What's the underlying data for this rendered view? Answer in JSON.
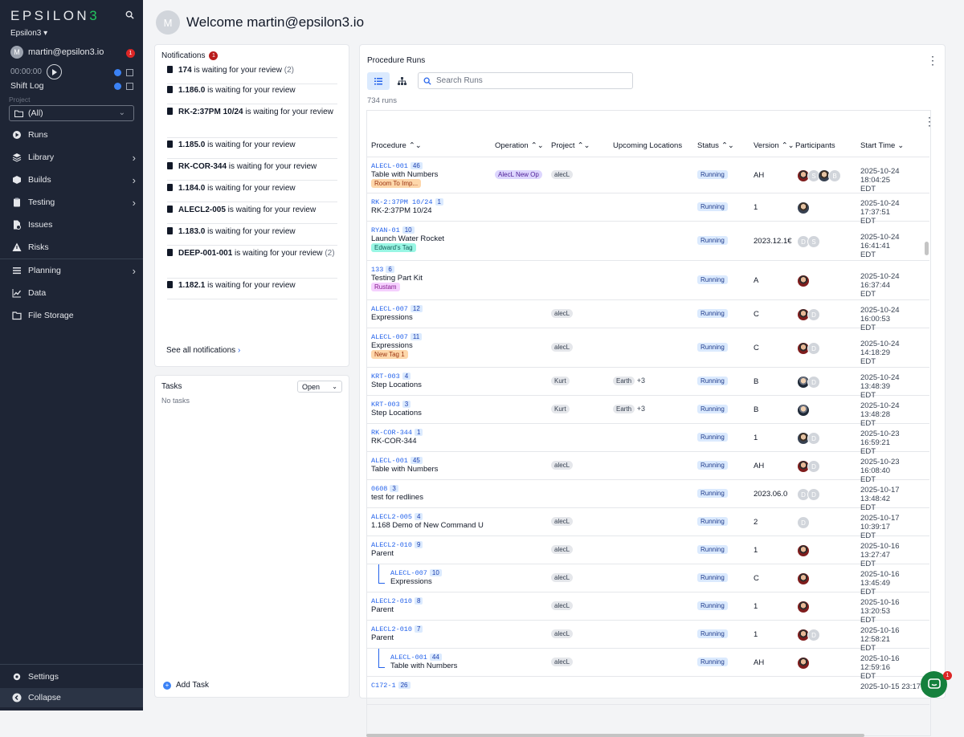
{
  "sidebar": {
    "logo": "EPSILON3",
    "org": "Epsilon3 ▾",
    "user": "martin@epsilon3.io",
    "user_initial": "M",
    "badge": "1",
    "timer": "00:00:00",
    "shift_log": "Shift Log",
    "project_label": "Project",
    "project_value": "(All)",
    "nav": [
      {
        "label": "Runs",
        "icon": "play-circle-icon"
      },
      {
        "label": "Library",
        "icon": "layers-icon"
      },
      {
        "label": "Builds",
        "icon": "box-icon"
      },
      {
        "label": "Testing",
        "icon": "clipboard-icon"
      },
      {
        "label": "Issues",
        "icon": "issue-icon"
      },
      {
        "label": "Risks",
        "icon": "warning-icon"
      },
      {
        "label": "Planning",
        "icon": "list-icon"
      },
      {
        "label": "Data",
        "icon": "chart-icon"
      },
      {
        "label": "File Storage",
        "icon": "folder-icon"
      }
    ],
    "settings": "Settings",
    "collapse": "Collapse"
  },
  "header": {
    "initial": "M",
    "welcome": "Welcome martin@epsilon3.io"
  },
  "notifications": {
    "title": "Notifications",
    "badge": "1",
    "items": [
      {
        "bold": "174",
        "text": " is waiting for your review",
        "count": "(2)"
      },
      {
        "bold": "1.186.0",
        "text": " is waiting for your review",
        "count": ""
      },
      {
        "bold": "RK-2:37PM 10/24",
        "text": " is waiting for your review",
        "count": ""
      },
      {
        "bold": "1.185.0",
        "text": " is waiting for your review",
        "count": ""
      },
      {
        "bold": "RK-COR-344",
        "text": " is waiting for your review",
        "count": ""
      },
      {
        "bold": "1.184.0",
        "text": " is waiting for your review",
        "count": ""
      },
      {
        "bold": "ALECL2-005",
        "text": " is waiting for your review",
        "count": ""
      },
      {
        "bold": "1.183.0",
        "text": " is waiting for your review",
        "count": ""
      },
      {
        "bold": "DEEP-001-001",
        "text": " is waiting for your review",
        "count": "(2)"
      },
      {
        "bold": "1.182.1",
        "text": " is waiting for your review",
        "count": ""
      }
    ],
    "see_all": "See all notifications"
  },
  "tasks": {
    "title": "Tasks",
    "filter": "Open",
    "empty": "No tasks",
    "add": "Add Task"
  },
  "runs": {
    "title": "Procedure Runs",
    "search_placeholder": "Search Runs",
    "count": "734 runs",
    "columns": [
      "Procedure",
      "Operation",
      "Project",
      "Upcoming Locations",
      "Status",
      "Version",
      "Participants",
      "Start Time"
    ],
    "rows": [
      {
        "id": "ALECL-001",
        "ver": "46",
        "name": "Table with Numbers",
        "tag": "Room To Imp...",
        "tag_color": "#fed7aa",
        "tag_text": "#9a3412",
        "operation": "AlecL New Op",
        "project": "alecL",
        "location": "",
        "loc_extra": "",
        "status": "Running",
        "version": "AH",
        "participants": [
          "photo",
          "S",
          "photo2",
          "B"
        ],
        "date": "2025-10-24 18:04:25",
        "tz": "EDT",
        "indent": false
      },
      {
        "id": "RK-2:37PM 10/24",
        "ver": "1",
        "name": "RK-2:37PM 10/24",
        "tag": "",
        "operation": "",
        "project": "",
        "location": "",
        "loc_extra": "",
        "status": "Running",
        "version": "1",
        "participants": [
          "photo2"
        ],
        "date": "2025-10-24 17:37:51",
        "tz": "EDT",
        "indent": false
      },
      {
        "id": "RYAN-01",
        "ver": "10",
        "name": "Launch Water Rocket",
        "tag": "Edward's Tag",
        "tag_color": "#99f6e4",
        "tag_text": "#115e59",
        "operation": "",
        "project": "",
        "location": "",
        "loc_extra": "",
        "status": "Running",
        "version": "2023.12.1€",
        "participants": [
          "D",
          "S"
        ],
        "date": "2025-10-24 16:41:41",
        "tz": "EDT",
        "indent": false
      },
      {
        "id": "133",
        "ver": "6",
        "name": "Testing Part Kit",
        "tag": "Rustam",
        "tag_color": "#f5d0fe",
        "tag_text": "#86198f",
        "operation": "",
        "project": "",
        "location": "",
        "loc_extra": "",
        "status": "Running",
        "version": "A",
        "participants": [
          "photo"
        ],
        "date": "2025-10-24 16:37:44",
        "tz": "EDT",
        "indent": false
      },
      {
        "id": "ALECL-007",
        "ver": "12",
        "name": "Expressions",
        "tag": "",
        "operation": "",
        "project": "alecL",
        "location": "",
        "loc_extra": "",
        "status": "Running",
        "version": "C",
        "participants": [
          "photo",
          "D"
        ],
        "date": "2025-10-24 16:00:53",
        "tz": "EDT",
        "indent": false
      },
      {
        "id": "ALECL-007",
        "ver": "11",
        "name": "Expressions",
        "tag": "New Tag 1",
        "tag_color": "#fed7aa",
        "tag_text": "#9a3412",
        "operation": "",
        "project": "alecL",
        "location": "",
        "loc_extra": "",
        "status": "Running",
        "version": "C",
        "participants": [
          "photo",
          "D"
        ],
        "date": "2025-10-24 14:18:29",
        "tz": "EDT",
        "indent": false
      },
      {
        "id": "KRT-003",
        "ver": "4",
        "name": "Step Locations",
        "tag": "",
        "operation": "",
        "project": "Kurt",
        "location": "Earth",
        "loc_extra": "+3",
        "status": "Running",
        "version": "B",
        "participants": [
          "photo3",
          "D"
        ],
        "date": "2025-10-24 13:48:39",
        "tz": "EDT",
        "indent": false
      },
      {
        "id": "KRT-003",
        "ver": "3",
        "name": "Step Locations",
        "tag": "",
        "operation": "",
        "project": "Kurt",
        "location": "Earth",
        "loc_extra": "+3",
        "status": "Running",
        "version": "B",
        "participants": [
          "photo3"
        ],
        "date": "2025-10-24 13:48:28",
        "tz": "EDT",
        "indent": false
      },
      {
        "id": "RK-COR-344",
        "ver": "1",
        "name": "RK-COR-344",
        "tag": "",
        "operation": "",
        "project": "",
        "location": "",
        "loc_extra": "",
        "status": "Running",
        "version": "1",
        "participants": [
          "photo2",
          "D"
        ],
        "date": "2025-10-23 16:59:21",
        "tz": "EDT",
        "indent": false
      },
      {
        "id": "ALECL-001",
        "ver": "45",
        "name": "Table with Numbers",
        "tag": "",
        "operation": "",
        "project": "alecL",
        "location": "",
        "loc_extra": "",
        "status": "Running",
        "version": "AH",
        "participants": [
          "photo",
          "D"
        ],
        "date": "2025-10-23 16:08:40",
        "tz": "EDT",
        "indent": false
      },
      {
        "id": "0608",
        "ver": "3",
        "name": "test for redlines",
        "tag": "",
        "operation": "",
        "project": "",
        "location": "",
        "loc_extra": "",
        "status": "Running",
        "version": "2023.06.0",
        "participants": [
          "D",
          "D"
        ],
        "date": "2025-10-17 13:48:42",
        "tz": "EDT",
        "indent": false
      },
      {
        "id": "ALECL2-005",
        "ver": "4",
        "name": "1.168 Demo of New Command U",
        "tag": "",
        "operation": "",
        "project": "alecL",
        "location": "",
        "loc_extra": "",
        "status": "Running",
        "version": "2",
        "participants": [
          "D"
        ],
        "date": "2025-10-17 10:39:17",
        "tz": "EDT",
        "indent": false
      },
      {
        "id": "ALECL2-010",
        "ver": "9",
        "name": "Parent",
        "tag": "",
        "operation": "",
        "project": "alecL",
        "location": "",
        "loc_extra": "",
        "status": "Running",
        "version": "1",
        "participants": [
          "photo"
        ],
        "date": "2025-10-16 13:27:47",
        "tz": "EDT",
        "indent": false
      },
      {
        "id": "ALECL-007",
        "ver": "10",
        "name": "Expressions",
        "tag": "",
        "operation": "",
        "project": "alecL",
        "location": "",
        "loc_extra": "",
        "status": "Running",
        "version": "C",
        "participants": [
          "photo"
        ],
        "date": "2025-10-16 13:45:49",
        "tz": "EDT",
        "indent": true
      },
      {
        "id": "ALECL2-010",
        "ver": "8",
        "name": "Parent",
        "tag": "",
        "operation": "",
        "project": "alecL",
        "location": "",
        "loc_extra": "",
        "status": "Running",
        "version": "1",
        "participants": [
          "photo"
        ],
        "date": "2025-10-16 13:20:53",
        "tz": "EDT",
        "indent": false
      },
      {
        "id": "ALECL2-010",
        "ver": "7",
        "name": "Parent",
        "tag": "",
        "operation": "",
        "project": "alecL",
        "location": "",
        "loc_extra": "",
        "status": "Running",
        "version": "1",
        "participants": [
          "photo",
          "D"
        ],
        "date": "2025-10-16 12:58:21",
        "tz": "EDT",
        "indent": false
      },
      {
        "id": "ALECL-001",
        "ver": "44",
        "name": "Table with Numbers",
        "tag": "",
        "operation": "",
        "project": "alecL",
        "location": "",
        "loc_extra": "",
        "status": "Running",
        "version": "AH",
        "participants": [
          "photo"
        ],
        "date": "2025-10-16 12:59:16",
        "tz": "EDT",
        "indent": true
      },
      {
        "id": "C172-1",
        "ver": "26",
        "name": "",
        "tag": "",
        "operation": "",
        "project": "",
        "location": "",
        "loc_extra": "",
        "status": "",
        "version": "",
        "participants": [],
        "date": "2025-10-15 23:17",
        "tz": "",
        "indent": false
      }
    ]
  },
  "chat_badge": "1"
}
